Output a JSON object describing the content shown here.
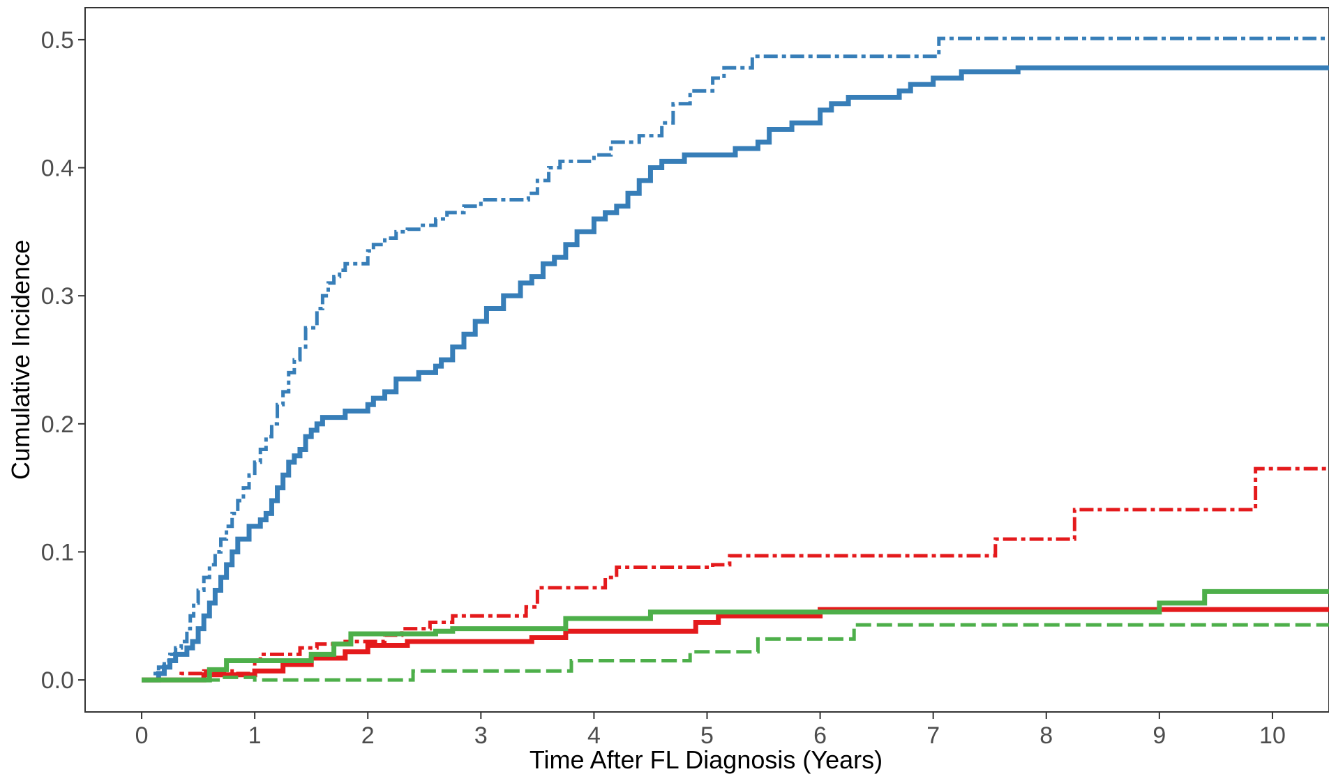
{
  "chart_data": {
    "type": "line",
    "title": "",
    "xlabel": "Time After FL Diagnosis (Years)",
    "ylabel": "Cumulative Incidence",
    "xlim": [
      -0.5,
      10.5
    ],
    "ylim": [
      -0.025,
      0.525
    ],
    "x_ticks": [
      0,
      1,
      2,
      3,
      4,
      5,
      6,
      7,
      8,
      9,
      10
    ],
    "x_tick_labels": [
      "0",
      "1",
      "2",
      "3",
      "4",
      "5",
      "6",
      "7",
      "8",
      "9",
      "10"
    ],
    "y_ticks": [
      0.0,
      0.1,
      0.2,
      0.3,
      0.4,
      0.5
    ],
    "y_tick_labels": [
      "0.0",
      "0.1",
      "0.2",
      "0.3",
      "0.4",
      "0.5"
    ],
    "grid": false,
    "legend": "none",
    "step": true,
    "series": [
      {
        "color": "#377eb8",
        "dash": "dashdot",
        "x": [
          0,
          0.12,
          0.15,
          0.2,
          0.25,
          0.3,
          0.35,
          0.4,
          0.43,
          0.46,
          0.5,
          0.55,
          0.6,
          0.65,
          0.7,
          0.75,
          0.8,
          0.85,
          0.9,
          0.95,
          1.0,
          1.05,
          1.1,
          1.15,
          1.2,
          1.25,
          1.3,
          1.35,
          1.4,
          1.45,
          1.55,
          1.6,
          1.65,
          1.7,
          1.75,
          1.8,
          1.9,
          2.0,
          2.05,
          2.15,
          2.25,
          2.35,
          2.45,
          2.6,
          2.7,
          2.85,
          3.0,
          3.2,
          3.42,
          3.5,
          3.6,
          3.7,
          4.0,
          4.15,
          4.4,
          4.6,
          4.7,
          4.85,
          5.05,
          5.15,
          5.4,
          7.05,
          10.5
        ],
        "y": [
          0,
          0.005,
          0.01,
          0.015,
          0.02,
          0.025,
          0.03,
          0.04,
          0.05,
          0.06,
          0.07,
          0.08,
          0.09,
          0.1,
          0.11,
          0.12,
          0.13,
          0.14,
          0.15,
          0.16,
          0.17,
          0.18,
          0.19,
          0.2,
          0.215,
          0.225,
          0.24,
          0.25,
          0.26,
          0.275,
          0.29,
          0.3,
          0.31,
          0.315,
          0.32,
          0.325,
          0.325,
          0.335,
          0.34,
          0.345,
          0.35,
          0.352,
          0.355,
          0.36,
          0.365,
          0.37,
          0.375,
          0.375,
          0.38,
          0.39,
          0.4,
          0.405,
          0.41,
          0.42,
          0.425,
          0.435,
          0.45,
          0.46,
          0.47,
          0.478,
          0.487,
          0.501,
          0.501
        ]
      },
      {
        "color": "#377eb8",
        "dash": "solid",
        "x": [
          0,
          0.15,
          0.2,
          0.25,
          0.3,
          0.4,
          0.45,
          0.5,
          0.55,
          0.6,
          0.65,
          0.7,
          0.75,
          0.8,
          0.85,
          0.95,
          1.05,
          1.1,
          1.15,
          1.2,
          1.25,
          1.3,
          1.35,
          1.4,
          1.45,
          1.5,
          1.55,
          1.6,
          1.8,
          2.0,
          2.05,
          2.15,
          2.25,
          2.45,
          2.6,
          2.65,
          2.75,
          2.85,
          2.95,
          3.05,
          3.2,
          3.35,
          3.45,
          3.55,
          3.65,
          3.75,
          3.85,
          4.0,
          4.1,
          4.2,
          4.3,
          4.4,
          4.5,
          4.6,
          4.8,
          5.0,
          5.25,
          5.45,
          5.55,
          5.75,
          6.0,
          6.1,
          6.25,
          6.7,
          6.8,
          7.0,
          7.25,
          7.75,
          10.5
        ],
        "y": [
          0,
          0.005,
          0.01,
          0.015,
          0.02,
          0.025,
          0.03,
          0.04,
          0.05,
          0.06,
          0.07,
          0.08,
          0.09,
          0.1,
          0.11,
          0.12,
          0.125,
          0.13,
          0.14,
          0.15,
          0.16,
          0.17,
          0.175,
          0.18,
          0.19,
          0.195,
          0.2,
          0.205,
          0.21,
          0.215,
          0.22,
          0.225,
          0.235,
          0.24,
          0.245,
          0.25,
          0.26,
          0.27,
          0.28,
          0.29,
          0.3,
          0.31,
          0.315,
          0.325,
          0.33,
          0.34,
          0.35,
          0.36,
          0.365,
          0.37,
          0.38,
          0.39,
          0.4,
          0.405,
          0.41,
          0.41,
          0.415,
          0.42,
          0.43,
          0.435,
          0.445,
          0.45,
          0.455,
          0.46,
          0.465,
          0.47,
          0.475,
          0.478,
          0.478
        ]
      },
      {
        "color": "#e41a1c",
        "dash": "dashdot",
        "x": [
          0,
          0.35,
          0.45,
          0.55,
          0.8,
          1.0,
          1.05,
          1.4,
          1.55,
          1.8,
          2.0,
          2.15,
          2.3,
          2.55,
          2.75,
          3.0,
          3.4,
          3.5,
          4.1,
          4.2,
          5.05,
          5.2,
          7.5,
          7.55,
          8.2,
          8.25,
          9.8,
          9.85,
          10.5
        ],
        "y": [
          0,
          0.005,
          0.005,
          0.007,
          0.005,
          0.015,
          0.02,
          0.025,
          0.028,
          0.03,
          0.03,
          0.035,
          0.04,
          0.045,
          0.05,
          0.05,
          0.057,
          0.072,
          0.08,
          0.088,
          0.09,
          0.097,
          0.097,
          0.11,
          0.11,
          0.133,
          0.133,
          0.165,
          0.165
        ]
      },
      {
        "color": "#e41a1c",
        "dash": "solid",
        "x": [
          0,
          0.55,
          1.0,
          1.25,
          1.5,
          1.8,
          2.0,
          2.35,
          2.7,
          3.45,
          3.75,
          4.9,
          5.1,
          6.0,
          10.5
        ],
        "y": [
          0,
          0.004,
          0.007,
          0.012,
          0.017,
          0.022,
          0.027,
          0.03,
          0.03,
          0.033,
          0.038,
          0.045,
          0.05,
          0.055,
          0.055
        ]
      },
      {
        "color": "#4daf4a",
        "dash": "solid",
        "x": [
          0,
          0.6,
          0.75,
          1.5,
          1.7,
          1.85,
          2.6,
          2.75,
          3.75,
          4.5,
          6.0,
          9.0,
          9.4,
          10.5
        ],
        "y": [
          0,
          0.008,
          0.015,
          0.02,
          0.028,
          0.036,
          0.038,
          0.04,
          0.048,
          0.053,
          0.053,
          0.06,
          0.069,
          0.069
        ]
      },
      {
        "color": "#4daf4a",
        "dash": "dashed",
        "x": [
          0,
          0.7,
          1.0,
          2.4,
          3.8,
          4.85,
          5.45,
          6.3,
          10.5
        ],
        "y": [
          0,
          0.002,
          0.0,
          0.007,
          0.015,
          0.022,
          0.032,
          0.043,
          0.043
        ]
      }
    ]
  }
}
